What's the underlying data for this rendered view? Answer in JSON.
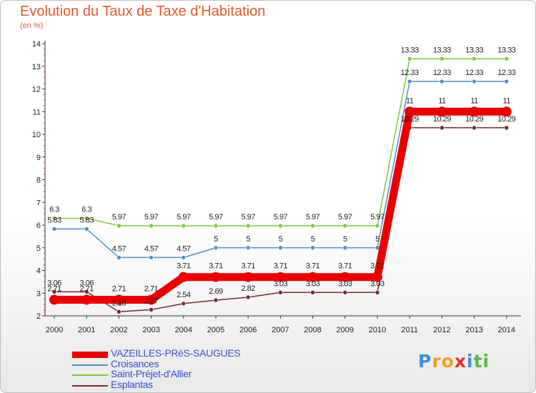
{
  "title": "Evolution du Taux de Taxe d'Habitation",
  "subtitle": "(en %)",
  "logo": {
    "letters": [
      "P",
      "r",
      "o",
      "x",
      "i",
      "t",
      "i"
    ],
    "colors": [
      "#3b8fd9",
      "#f0a020",
      "#f0a020",
      "#e53030",
      "#3b8fd9",
      "#5db84a",
      "#5db84a"
    ]
  },
  "chart_data": {
    "type": "line",
    "x": [
      "2000",
      "2001",
      "2002",
      "2003",
      "2004",
      "2005",
      "2006",
      "2007",
      "2008",
      "2009",
      "2010",
      "2011",
      "2012",
      "2013",
      "2014"
    ],
    "ylim": [
      2,
      14
    ],
    "yticks": [
      "2",
      "3",
      "4",
      "5",
      "6",
      "7",
      "8",
      "9",
      "10",
      "11",
      "12",
      "13",
      "14"
    ],
    "grid": false,
    "legend_placement": "bottom-left",
    "series": [
      {
        "name": "VAZEILLES-PRèS-SAUGUES",
        "color": "#e80000",
        "values": [
          2.71,
          2.71,
          2.71,
          2.71,
          3.71,
          3.71,
          3.71,
          3.71,
          3.71,
          3.71,
          3.71,
          11,
          11,
          11,
          11
        ],
        "labels": [
          "2.71",
          "2.71",
          "2.71",
          "2.71",
          "3.71",
          "3.71",
          "3.71",
          "3.71",
          "3.71",
          "3.71",
          "3.71",
          "11",
          "11",
          "11",
          "11"
        ]
      },
      {
        "name": "Croisances",
        "color": "#4f8fd0",
        "values": [
          5.83,
          5.83,
          4.57,
          4.57,
          4.57,
          5,
          5,
          5,
          5,
          5,
          5,
          12.33,
          12.33,
          12.33,
          12.33
        ],
        "labels": [
          "5.83",
          "5.83",
          "4.57",
          "4.57",
          "4.57",
          "5",
          "5",
          "5",
          "5",
          "5",
          "5",
          "12.33",
          "12.33",
          "12.33",
          "12.33"
        ]
      },
      {
        "name": "Saint-Préjet-d'Allier",
        "color": "#7cc843",
        "values": [
          6.3,
          6.3,
          5.97,
          5.97,
          5.97,
          5.97,
          5.97,
          5.97,
          5.97,
          5.97,
          5.97,
          13.33,
          13.33,
          13.33,
          13.33
        ],
        "labels": [
          "6.3",
          "6.3",
          "5.97",
          "5.97",
          "5.97",
          "5.97",
          "5.97",
          "5.97",
          "5.97",
          "5.97",
          "5.97",
          "13.33",
          "13.33",
          "13.33",
          "13.33"
        ]
      },
      {
        "name": "Esplantas",
        "color": "#7a2a2a",
        "values": [
          3.06,
          3.06,
          2.18,
          2.27,
          2.54,
          2.69,
          2.82,
          3.03,
          3.03,
          3.03,
          3.03,
          10.29,
          10.29,
          10.29,
          10.29
        ],
        "labels": [
          "3.06",
          "3.06",
          "2.18",
          "2.27",
          "2.54",
          "2.69",
          "2.82",
          "3.03",
          "3.03",
          "3.03",
          "3.03",
          "10.29",
          "10.29",
          "10.29",
          "10.29"
        ]
      }
    ]
  }
}
